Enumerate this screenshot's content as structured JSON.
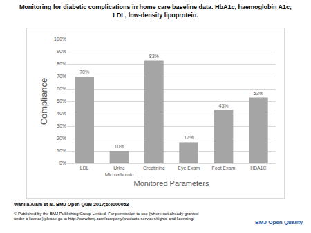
{
  "chart_data": {
    "type": "bar",
    "title": "Monitoring for diabetic complications in home care baseline data. HbA1c, haemoglobin A1c; LDL, low-density lipoprotein.",
    "x_label": "Monitored Parameters",
    "y_label": "Compliance",
    "categories": [
      "LDL",
      "Urine Microalbumin",
      "Creatinine",
      "Eye Exam",
      "Foot Exam",
      "HBA1C"
    ],
    "values": [
      70,
      10,
      83,
      17,
      43,
      53
    ],
    "value_labels": [
      "70%",
      "10%",
      "83%",
      "17%",
      "43%",
      "53%"
    ],
    "data_labels": true,
    "color": "#a5a5a5",
    "ylim": [
      0,
      100
    ],
    "yticks": [
      {
        "value": 0,
        "label": "0%"
      },
      {
        "value": 10,
        "label": "10%"
      },
      {
        "value": 20,
        "label": "20%"
      },
      {
        "value": 30,
        "label": "30%"
      },
      {
        "value": 40,
        "label": "40%"
      },
      {
        "value": 50,
        "label": "50%"
      },
      {
        "value": 60,
        "label": "60%"
      },
      {
        "value": 70,
        "label": "70%"
      },
      {
        "value": 80,
        "label": "80%"
      },
      {
        "value": 90,
        "label": "90%"
      },
      {
        "value": 100,
        "label": "100%"
      }
    ],
    "grid": true
  },
  "footer": {
    "citation": "Wahila Alam et al. BMJ Open Qual 2017;6:e000053",
    "copyright": "© Published by the BMJ Publishing Group Limited. For permission to use (where not already granted under a licence) please go to http://www.bmj.com/company/products-services/rights-and-licensing/",
    "logo": "BMJ Open Quality"
  }
}
